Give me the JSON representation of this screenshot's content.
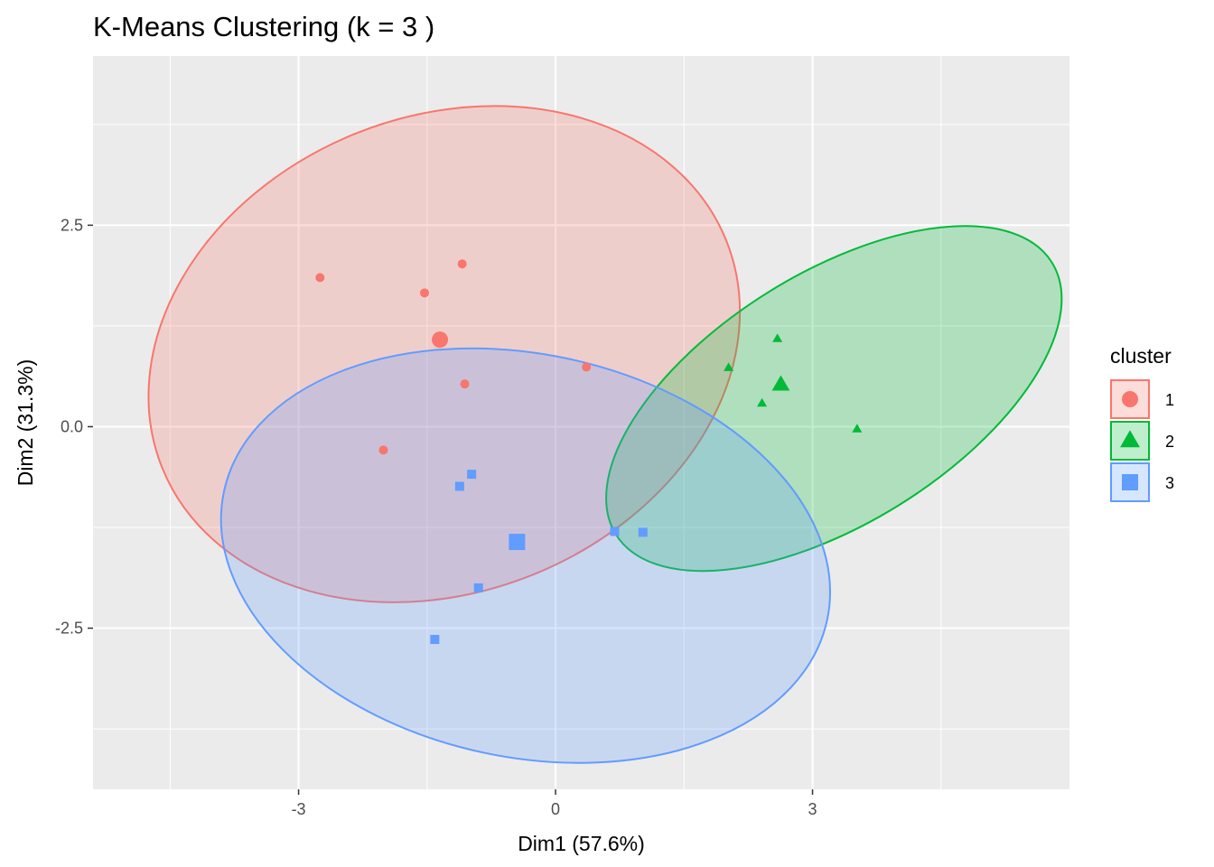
{
  "chart_data": {
    "type": "scatter",
    "title": "K-Means Clustering (k = 3 )",
    "xlabel": "Dim1 (57.6%)",
    "ylabel": "Dim2 (31.3%)",
    "xlim": [
      -5.4,
      6.0
    ],
    "ylim": [
      -4.5,
      4.6
    ],
    "x_ticks": [
      -3,
      0,
      3
    ],
    "x_tick_labels": [
      "-3",
      "0",
      "3"
    ],
    "y_ticks": [
      -2.5,
      0.0,
      2.5
    ],
    "y_tick_labels": [
      "-2.5",
      "0.0",
      "2.5"
    ],
    "grid": true,
    "legend": {
      "title": "cluster",
      "placement": "right",
      "entries": [
        "1",
        "2",
        "3"
      ]
    },
    "series": [
      {
        "name": "1",
        "color": "#F8766D",
        "shape": "circle",
        "points": [
          [
            -2.75,
            1.85
          ],
          [
            -1.53,
            1.66
          ],
          [
            -1.09,
            2.02
          ],
          [
            -1.06,
            0.53
          ],
          [
            -2.01,
            -0.29
          ],
          [
            0.36,
            0.74
          ]
        ],
        "centroid": [
          -1.35,
          1.08
        ],
        "ellipse": {
          "cx": -1.3,
          "cy": 0.9,
          "rx": 3.55,
          "ry": 2.95,
          "angle": -22
        }
      },
      {
        "name": "2",
        "color": "#00BA38",
        "shape": "triangle",
        "points": [
          [
            2.59,
            1.09
          ],
          [
            2.02,
            0.73
          ],
          [
            2.41,
            0.29
          ],
          [
            3.52,
            -0.03
          ]
        ],
        "centroid": [
          2.63,
          0.52
        ],
        "ellipse": {
          "cx": 3.25,
          "cy": 0.35,
          "rx": 3.0,
          "ry": 1.55,
          "angle": -32
        }
      },
      {
        "name": "3",
        "color": "#619CFF",
        "shape": "square",
        "points": [
          [
            -1.12,
            -0.74
          ],
          [
            -0.98,
            -0.59
          ],
          [
            0.69,
            -1.3
          ],
          [
            1.02,
            -1.31
          ],
          [
            -0.9,
            -2.0
          ],
          [
            -1.41,
            -2.64
          ]
        ],
        "centroid": [
          -0.45,
          -1.43
        ],
        "ellipse": {
          "cx": -0.35,
          "cy": -1.6,
          "rx": 3.6,
          "ry": 2.5,
          "angle": 12
        }
      }
    ]
  }
}
